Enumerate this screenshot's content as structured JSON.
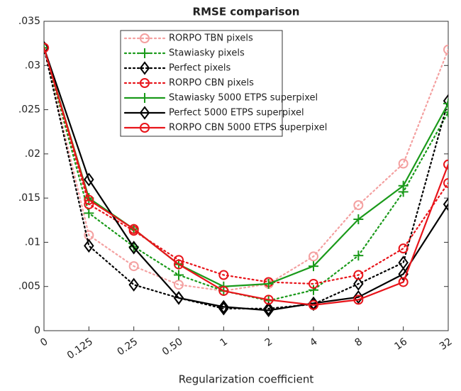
{
  "chart_data": {
    "type": "line",
    "title": "RMSE comparison",
    "x_label": "Regularization coefficient",
    "categories": [
      "0",
      "0.125",
      "0.25",
      "0.50",
      "1",
      "2",
      "4",
      "8",
      "16",
      "32"
    ],
    "ylim": [
      0,
      0.035
    ],
    "yticks": [
      0,
      {
        "value": 0.005,
        "label": ".005"
      },
      {
        "value": 0.01,
        "label": ".01"
      },
      {
        "value": 0.015,
        "label": ".015"
      },
      {
        "value": 0.02,
        "label": ".02"
      },
      {
        "value": 0.025,
        "label": ".025"
      },
      {
        "value": 0.03,
        "label": ".03"
      },
      {
        "value": 0.035,
        "label": ".035"
      }
    ],
    "grid": false,
    "legend": "top",
    "series": [
      {
        "name": "RORPO TBN pixels",
        "color": "#f4a0a0",
        "style": "dotted",
        "marker": "circle",
        "values": [
          0.032,
          0.0108,
          0.0073,
          0.0052,
          0.0045,
          0.0053,
          0.0084,
          0.0142,
          0.0189,
          0.0318
        ]
      },
      {
        "name": "Stawiasky pixels",
        "color": "#1a9a1a",
        "style": "dotted",
        "marker": "plus",
        "values": [
          0.032,
          0.0133,
          0.0095,
          0.0063,
          0.0045,
          0.0034,
          0.0046,
          0.0085,
          0.0157,
          0.0247
        ]
      },
      {
        "name": "Perfect pixels",
        "color": "#000000",
        "style": "dotted",
        "marker": "diamond",
        "values": [
          0.032,
          0.0096,
          0.0052,
          0.0037,
          0.0025,
          0.0025,
          0.003,
          0.0053,
          0.0077,
          0.026
        ]
      },
      {
        "name": "RORPO CBN pixels",
        "color": "#e8141a",
        "style": "dotted",
        "marker": "circle",
        "values": [
          0.032,
          0.0143,
          0.0113,
          0.008,
          0.0063,
          0.0055,
          0.0053,
          0.0063,
          0.0093,
          0.0167
        ]
      },
      {
        "name": "Stawiasky 5000 ETPS superpixel",
        "color": "#1a9a1a",
        "style": "solid",
        "marker": "plus",
        "values": [
          0.032,
          0.015,
          0.0115,
          0.0075,
          0.005,
          0.0053,
          0.0073,
          0.0126,
          0.0164,
          0.0257
        ]
      },
      {
        "name": "Perfect 5000 ETPS superpixel",
        "color": "#000000",
        "style": "solid",
        "marker": "diamond",
        "values": [
          0.032,
          0.0171,
          0.0094,
          0.0037,
          0.0027,
          0.0023,
          0.0031,
          0.0038,
          0.0064,
          0.0143
        ]
      },
      {
        "name": "RORPO CBN 5000 ETPS superpixel",
        "color": "#e8141a",
        "style": "solid",
        "marker": "circle",
        "values": [
          0.032,
          0.0148,
          0.0115,
          0.0075,
          0.0045,
          0.0035,
          0.0029,
          0.0035,
          0.0055,
          0.0188
        ]
      }
    ]
  }
}
